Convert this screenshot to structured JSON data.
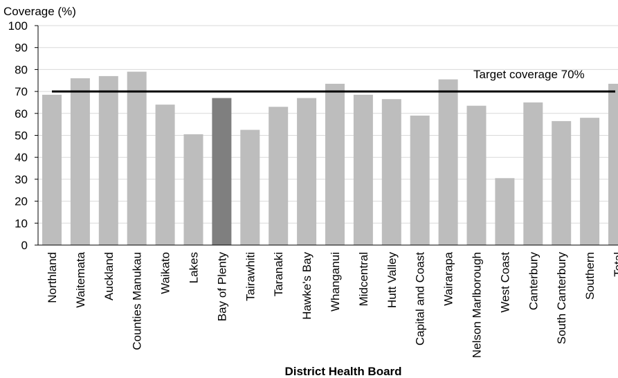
{
  "chart_data": {
    "type": "bar",
    "ylabel": "Coverage  (%)",
    "xlabel": "District Health Board",
    "ylim": [
      0,
      100
    ],
    "yticks": [
      0,
      10,
      20,
      30,
      40,
      50,
      60,
      70,
      80,
      90,
      100
    ],
    "grid": true,
    "categories": [
      "Northland",
      "Waitemata",
      "Auckland",
      "Counties Manukau",
      "Waikato",
      "Lakes",
      "Bay of Plenty",
      "Tairawhiti",
      "Taranaki",
      "Hawke's Bay",
      "Whanganui",
      "Midcentral",
      "Hutt Valley",
      "Capital and Coast",
      "Wairarapa",
      "Nelson Marlborough",
      "West Coast",
      "Canterbury",
      "South Canterbury",
      "Southern",
      "Total"
    ],
    "values": [
      68.5,
      76,
      77,
      79,
      64,
      50.5,
      67,
      52.5,
      63,
      67,
      73.5,
      68.5,
      66.5,
      59,
      75.5,
      63.5,
      30.5,
      65,
      56.5,
      58,
      73.5
    ],
    "highlight_category": "Bay of Plenty",
    "target_line": {
      "value": 70,
      "label": "Target coverage 70%"
    },
    "colors": {
      "bar": "#bdbdbd",
      "highlight": "#7f7f7f",
      "target": "#000000",
      "grid": "#d9d9d9"
    }
  }
}
